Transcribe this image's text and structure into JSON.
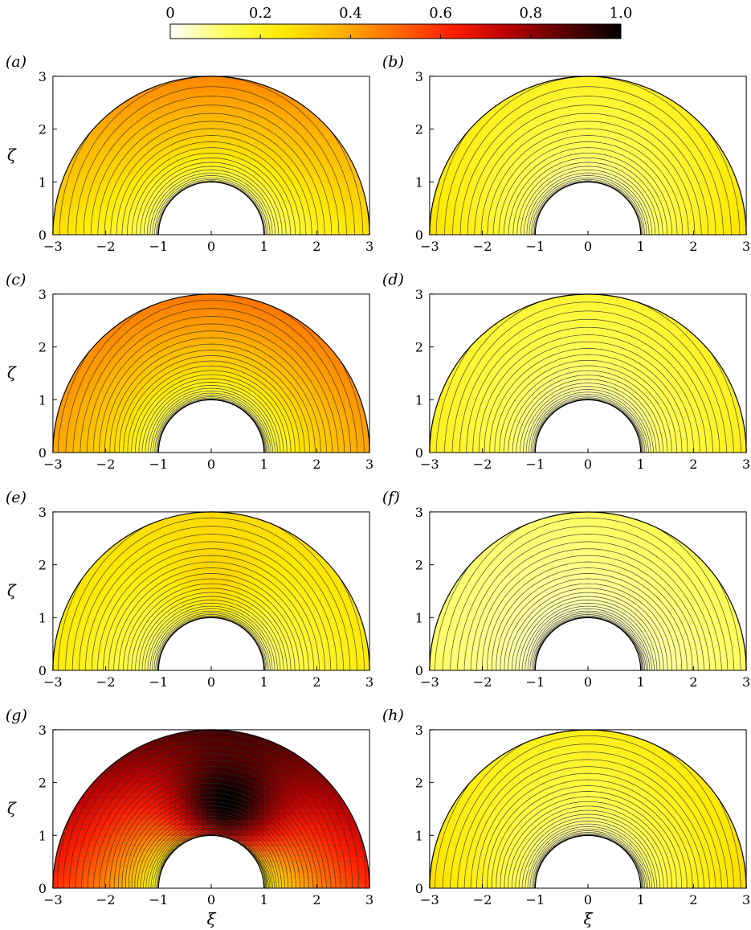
{
  "chart_data": {
    "type": "contour",
    "colorbar": {
      "ticks": [
        "0",
        "0.2",
        "0.4",
        "0.6",
        "0.8",
        "1.0"
      ],
      "range": [
        0,
        1.0
      ],
      "colormap": [
        "#ffffff",
        "#ffff5a",
        "#ffea00",
        "#ffb300",
        "#ff6a00",
        "#ff1e00",
        "#b80000",
        "#5a0000",
        "#000000"
      ]
    },
    "panels": [
      {
        "label": "(a)",
        "xlabel": "",
        "ylabel": "ζ",
        "xticks": [
          "−3",
          "−2",
          "−1",
          "0",
          "1",
          "2",
          "3"
        ],
        "yticks": [
          "0",
          "1",
          "2",
          "3"
        ],
        "xlim": [
          -3,
          3
        ],
        "ylim": [
          0,
          3
        ],
        "inner_radius": 1,
        "outer_radius": 3,
        "top_value": 0.45,
        "base_value": 0.27,
        "inner_value": 0.02,
        "hot_spot": null,
        "skew": 0.0,
        "contour_levels": 22
      },
      {
        "label": "(b)",
        "xlabel": "",
        "ylabel": "",
        "xticks": [
          "−3",
          "−2",
          "−1",
          "0",
          "1",
          "2",
          "3"
        ],
        "yticks": [
          "0",
          "1",
          "2",
          "3"
        ],
        "xlim": [
          -3,
          3
        ],
        "ylim": [
          0,
          3
        ],
        "inner_radius": 1,
        "outer_radius": 3,
        "top_value": 0.2,
        "base_value": 0.27,
        "inner_value": 0.02,
        "hot_spot": null,
        "skew": 0.0,
        "contour_levels": 22
      },
      {
        "label": "(c)",
        "xlabel": "",
        "ylabel": "ζ",
        "xticks": [
          "−3",
          "−2",
          "−1",
          "0",
          "1",
          "2",
          "3"
        ],
        "yticks": [
          "0",
          "1",
          "2",
          "3"
        ],
        "xlim": [
          -3,
          3
        ],
        "ylim": [
          0,
          3
        ],
        "inner_radius": 1,
        "outer_radius": 3,
        "top_value": 0.48,
        "base_value": 0.4,
        "inner_value": 0.02,
        "hot_spot": null,
        "skew": 0.2,
        "contour_levels": 26
      },
      {
        "label": "(d)",
        "xlabel": "",
        "ylabel": "",
        "xticks": [
          "−3",
          "−2",
          "−1",
          "0",
          "1",
          "2",
          "3"
        ],
        "yticks": [
          "0",
          "1",
          "2",
          "3"
        ],
        "xlim": [
          -3,
          3
        ],
        "ylim": [
          0,
          3
        ],
        "inner_radius": 1,
        "outer_radius": 3,
        "top_value": 0.18,
        "base_value": 0.22,
        "inner_value": 0.02,
        "hot_spot": null,
        "skew": 0.2,
        "contour_levels": 24
      },
      {
        "label": "(e)",
        "xlabel": "",
        "ylabel": "ζ",
        "xticks": [
          "−3",
          "−2",
          "−1",
          "0",
          "1",
          "2",
          "3"
        ],
        "yticks": [
          "0",
          "1",
          "2",
          "3"
        ],
        "xlim": [
          -3,
          3
        ],
        "ylim": [
          0,
          3
        ],
        "inner_radius": 1,
        "outer_radius": 3,
        "top_value": 0.28,
        "base_value": 0.24,
        "inner_value": 0.02,
        "hot_spot": {
          "x": 0.1,
          "y": 1.9,
          "value": 0.3
        },
        "skew": 0.0,
        "contour_levels": 26
      },
      {
        "label": "(f)",
        "xlabel": "",
        "ylabel": "",
        "xticks": [
          "−3",
          "−2",
          "−1",
          "0",
          "1",
          "2",
          "3"
        ],
        "yticks": [
          "0",
          "1",
          "2",
          "3"
        ],
        "xlim": [
          -3,
          3
        ],
        "ylim": [
          0,
          3
        ],
        "inner_radius": 1,
        "outer_radius": 3,
        "top_value": 0.12,
        "base_value": 0.12,
        "inner_value": 0.02,
        "hot_spot": null,
        "skew": 0.3,
        "contour_levels": 26
      },
      {
        "label": "(g)",
        "xlabel": "ξ",
        "ylabel": "ζ",
        "xticks": [
          "−3",
          "−2",
          "−1",
          "0",
          "1",
          "2",
          "3"
        ],
        "yticks": [
          "0",
          "1",
          "2",
          "3"
        ],
        "xlim": [
          -3,
          3
        ],
        "ylim": [
          0,
          3
        ],
        "inner_radius": 1,
        "outer_radius": 3,
        "top_value": 0.88,
        "base_value": 0.6,
        "inner_value": 0.02,
        "hot_spot": {
          "x": 0.3,
          "y": 1.65,
          "value": 1.0
        },
        "skew": 0.35,
        "contour_levels": 30
      },
      {
        "label": "(h)",
        "xlabel": "ξ",
        "ylabel": "",
        "xticks": [
          "−3",
          "−2",
          "−1",
          "0",
          "1",
          "2",
          "3"
        ],
        "yticks": [
          "0",
          "1",
          "2",
          "3"
        ],
        "xlim": [
          -3,
          3
        ],
        "ylim": [
          0,
          3
        ],
        "inner_radius": 1,
        "outer_radius": 3,
        "top_value": 0.22,
        "base_value": 0.28,
        "inner_value": 0.02,
        "hot_spot": null,
        "skew": 0.3,
        "contour_levels": 26
      }
    ]
  }
}
